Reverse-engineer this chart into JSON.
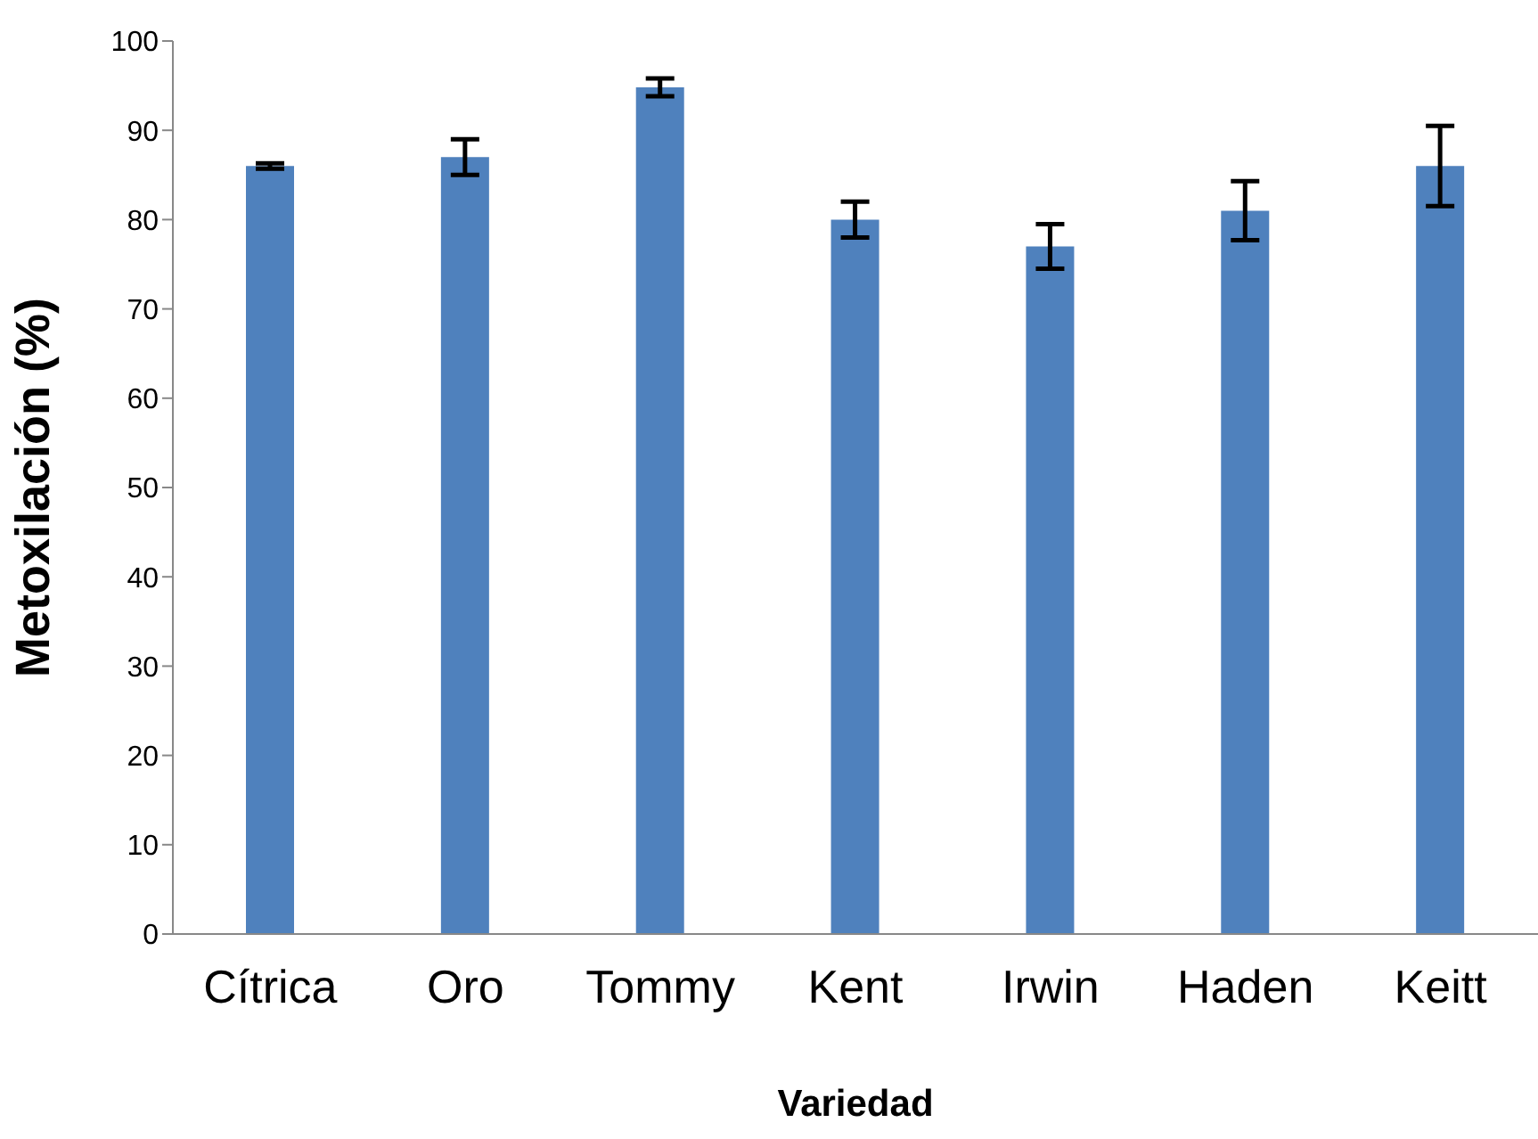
{
  "chart_data": {
    "type": "bar",
    "xlabel": "Variedad",
    "ylabel": "Metoxilación (%)",
    "categories": [
      "Cítrica",
      "Oro",
      "Tommy",
      "Kent",
      "Irwin",
      "Haden",
      "Keitt"
    ],
    "values": [
      86,
      87,
      94.8,
      80,
      77,
      81,
      86
    ],
    "errors": [
      0.3,
      2,
      1,
      2,
      2.5,
      3.3,
      4.5
    ],
    "color": "#4f81bd",
    "ylim": [
      0,
      100
    ],
    "yticks": [
      0,
      10,
      20,
      30,
      40,
      50,
      60,
      70,
      80,
      90,
      100
    ],
    "grid": false
  }
}
